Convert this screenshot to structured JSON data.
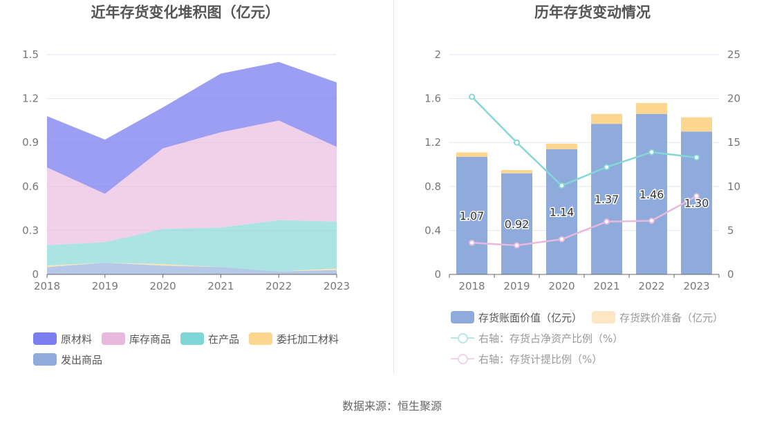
{
  "left_chart": {
    "title": "近年存货变化堆积图（亿元）"
  },
  "right_chart": {
    "title": "历年存货变动情况"
  },
  "source": "数据来源：恒生聚源",
  "colors": {
    "raw_materials": "#7b7ef0",
    "inventory_goods": "#e8b8dd",
    "wip": "#7fd6d6",
    "consigned": "#fdd78f",
    "shipped": "#8eabdc",
    "book_value": "#8eabdc",
    "impairment": "#fdd78f",
    "ratio_line": "#85d6d6",
    "provision_line": "#e8b8dd"
  },
  "chart_data": [
    {
      "type": "area",
      "stacked": true,
      "title": "近年存货变化堆积图（亿元）",
      "x": [
        "2018",
        "2019",
        "2020",
        "2021",
        "2022",
        "2023"
      ],
      "ylim": [
        0,
        1.5
      ],
      "yticks": [
        "0",
        "0.3",
        "0.6",
        "0.9",
        "1.2",
        "1.5"
      ],
      "series": [
        {
          "name": "发出商品",
          "values": [
            0.05,
            0.08,
            0.06,
            0.05,
            0.02,
            0.03
          ]
        },
        {
          "name": "委托加工材料",
          "values": [
            0.01,
            0.0,
            0.01,
            0.0,
            0.0,
            0.01
          ]
        },
        {
          "name": "在产品",
          "values": [
            0.14,
            0.14,
            0.24,
            0.27,
            0.35,
            0.32
          ]
        },
        {
          "name": "库存商品",
          "values": [
            0.53,
            0.33,
            0.55,
            0.65,
            0.68,
            0.51
          ]
        },
        {
          "name": "原材料",
          "values": [
            0.35,
            0.37,
            0.28,
            0.4,
            0.4,
            0.44
          ]
        }
      ],
      "legend": [
        "原材料",
        "库存商品",
        "在产品",
        "委托加工材料",
        "发出商品"
      ],
      "grid": true,
      "legend_position": "bottom"
    },
    {
      "type": "bar",
      "stacked": true,
      "title": "历年存货变动情况",
      "categories": [
        "2018",
        "2019",
        "2020",
        "2021",
        "2022",
        "2023"
      ],
      "ylim": [
        0,
        2
      ],
      "yticks": [
        "0",
        "0.4",
        "0.8",
        "1.2",
        "1.6",
        "2"
      ],
      "y2lim": [
        0,
        25
      ],
      "y2ticks": [
        "0",
        "5",
        "10",
        "15",
        "20",
        "25"
      ],
      "series": [
        {
          "name": "存货账面价值（亿元）",
          "values": [
            1.07,
            0.92,
            1.14,
            1.37,
            1.46,
            1.3
          ],
          "labels": [
            "1.07",
            "0.92",
            "1.14",
            "1.37",
            "1.46",
            "1.30"
          ]
        },
        {
          "name": "存货跌价准备（亿元）",
          "values": [
            0.04,
            0.03,
            0.05,
            0.09,
            0.1,
            0.13
          ]
        }
      ],
      "line_series": [
        {
          "name": "右轴：存货占净资产比例（%）",
          "values": [
            20.2,
            15.0,
            10.1,
            12.2,
            13.9,
            13.3
          ]
        },
        {
          "name": "右轴：存货计提比例（%）",
          "values": [
            3.6,
            3.3,
            4.0,
            6.0,
            6.1,
            8.9
          ]
        }
      ],
      "grid": true,
      "legend_position": "bottom"
    }
  ]
}
